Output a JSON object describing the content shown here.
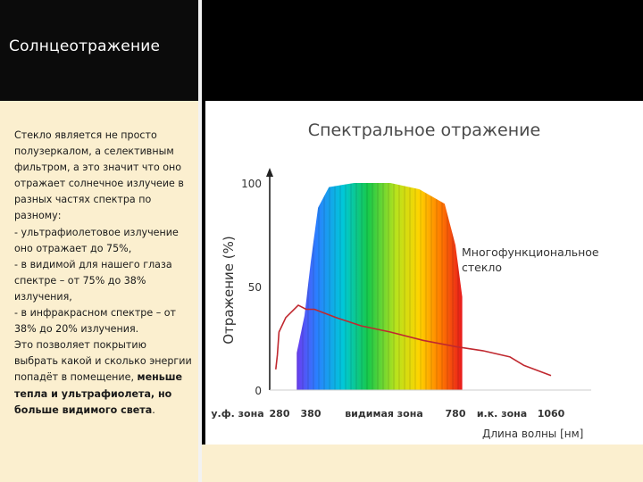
{
  "slide": {
    "title": "Солнцеотражение",
    "body": [
      "Стекло является не просто полузеркалом, а селективным фильтром, а это значит что оно отражает солнечное излучеие в разных частях спектра  по разному:",
      "- ультрафиолетовое излучение оно отражает до 75%,",
      "- в видимой для нашего глаза спектре –  от 75% до 38% излучения,",
      "- в инфракрасном спектре – от 38% до 20% излучения."
    ],
    "body_tail": "Это позволяет покрытию выбрать какой и сколько энергии попадёт в помещение, ",
    "body_strong": "меньше тепла и ультрафиолета, но больше видимого света",
    "body_end": ".",
    "colors": {
      "title_bar": "#0b0b0b",
      "text_panel": "#fbefcf",
      "curve": "#c0282f"
    }
  },
  "chart_data": {
    "type": "line",
    "title": "Спектральное отражение",
    "ylabel": "Отражение (%)",
    "xlabel": "Длина волны [нм]",
    "ylim": [
      0,
      100
    ],
    "y_ticks": [
      "0",
      "50",
      "100"
    ],
    "x_tick_labels": [
      "у.ф. зона",
      "280",
      "380",
      "видимая зона",
      "780",
      "и.к. зона",
      "1060"
    ],
    "grid": false,
    "legend": "none",
    "annotation": [
      "Многофункциональное",
      "стекло"
    ],
    "spectrum_band": {
      "description_colors": [
        "#6a3df0",
        "#2a7fff",
        "#00c8d8",
        "#17c94b",
        "#b8e21c",
        "#ffd400",
        "#ff7a00",
        "#e8191c"
      ],
      "top_profile": [
        {
          "x": 335,
          "y": 18
        },
        {
          "x": 360,
          "y": 36
        },
        {
          "x": 380,
          "y": 62
        },
        {
          "x": 400,
          "y": 88
        },
        {
          "x": 430,
          "y": 98
        },
        {
          "x": 500,
          "y": 100
        },
        {
          "x": 600,
          "y": 100
        },
        {
          "x": 680,
          "y": 97
        },
        {
          "x": 750,
          "y": 90
        },
        {
          "x": 780,
          "y": 70
        },
        {
          "x": 800,
          "y": 45
        }
      ]
    },
    "series": [
      {
        "values": [
          {
            "x": 210,
            "y": 10
          },
          {
            "x": 240,
            "y": 17
          },
          {
            "x": 270,
            "y": 28
          },
          {
            "x": 300,
            "y": 35
          },
          {
            "x": 340,
            "y": 41
          },
          {
            "x": 365,
            "y": 39
          },
          {
            "x": 390,
            "y": 39
          },
          {
            "x": 450,
            "y": 35
          },
          {
            "x": 520,
            "y": 31
          },
          {
            "x": 600,
            "y": 28
          },
          {
            "x": 690,
            "y": 24
          },
          {
            "x": 780,
            "y": 21
          },
          {
            "x": 860,
            "y": 19
          },
          {
            "x": 940,
            "y": 16
          },
          {
            "x": 980,
            "y": 12
          },
          {
            "x": 1060,
            "y": 7
          }
        ]
      }
    ]
  }
}
